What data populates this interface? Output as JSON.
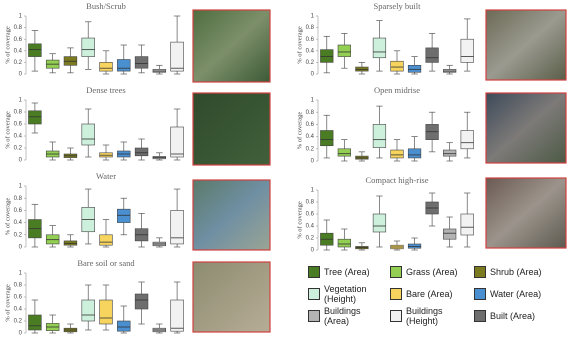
{
  "series": [
    {
      "name": "Tree (Area)",
      "color": "#4a7d23"
    },
    {
      "name": "Grass (Area)",
      "color": "#92cf52"
    },
    {
      "name": "Shrub (Area)",
      "color": "#7b7a1e"
    },
    {
      "name": "Vegetation (Height)",
      "color": "#cdf0dc"
    },
    {
      "name": "Bare (Area)",
      "color": "#f7d45e"
    },
    {
      "name": "Water (Area)",
      "color": "#4a8fd0"
    },
    {
      "name": "Built (Area)",
      "color": "#6e6e6e"
    },
    {
      "name": "Buildings (Area)",
      "color": "#b3b3b3"
    },
    {
      "name": "Buildings (Height)",
      "color": "#f2f2f2"
    }
  ],
  "chart_data": [
    {
      "type": "box",
      "title": "Bush/Scrub",
      "ylabel": "% of coverage",
      "ylim": [
        0,
        1
      ],
      "yticks": [
        0,
        0.2,
        0.4,
        0.6,
        0.8,
        1
      ],
      "boxes": [
        {
          "min": 0.05,
          "q1": 0.3,
          "median": 0.42,
          "q3": 0.52,
          "max": 0.75
        },
        {
          "min": 0.02,
          "q1": 0.1,
          "median": 0.17,
          "q3": 0.24,
          "max": 0.35
        },
        {
          "min": 0.02,
          "q1": 0.15,
          "median": 0.22,
          "q3": 0.3,
          "max": 0.45
        },
        {
          "min": 0.08,
          "q1": 0.3,
          "median": 0.42,
          "q3": 0.62,
          "max": 0.9
        },
        {
          "min": 0,
          "q1": 0.05,
          "median": 0.1,
          "q3": 0.2,
          "max": 0.4
        },
        {
          "min": 0,
          "q1": 0.05,
          "median": 0.1,
          "q3": 0.25,
          "max": 0.5
        },
        {
          "min": 0.02,
          "q1": 0.1,
          "median": 0.18,
          "q3": 0.3,
          "max": 0.5
        },
        {
          "min": 0,
          "q1": 0.03,
          "median": 0.05,
          "q3": 0.08,
          "max": 0.15
        },
        {
          "min": 0,
          "q1": 0.05,
          "median": 0.1,
          "q3": 0.55,
          "max": 1
        }
      ]
    },
    {
      "type": "box",
      "title": "Dense trees",
      "ylabel": "% of coverage",
      "ylim": [
        0,
        1
      ],
      "yticks": [
        0,
        0.2,
        0.4,
        0.6,
        0.8,
        1
      ],
      "boxes": [
        {
          "min": 0.45,
          "q1": 0.6,
          "median": 0.72,
          "q3": 0.82,
          "max": 0.95
        },
        {
          "min": 0,
          "q1": 0.05,
          "median": 0.1,
          "q3": 0.15,
          "max": 0.3
        },
        {
          "min": 0,
          "q1": 0.04,
          "median": 0.07,
          "q3": 0.1,
          "max": 0.2
        },
        {
          "min": 0.05,
          "q1": 0.25,
          "median": 0.35,
          "q3": 0.6,
          "max": 0.85
        },
        {
          "min": 0,
          "q1": 0.05,
          "median": 0.08,
          "q3": 0.12,
          "max": 0.25
        },
        {
          "min": 0,
          "q1": 0.05,
          "median": 0.1,
          "q3": 0.15,
          "max": 0.3
        },
        {
          "min": 0,
          "q1": 0.07,
          "median": 0.12,
          "q3": 0.2,
          "max": 0.35
        },
        {
          "min": 0,
          "q1": 0.02,
          "median": 0.04,
          "q3": 0.06,
          "max": 0.12
        },
        {
          "min": 0,
          "q1": 0.05,
          "median": 0.1,
          "q3": 0.55,
          "max": 0.85
        }
      ]
    },
    {
      "type": "box",
      "title": "Water",
      "ylabel": "% of coverage",
      "ylim": [
        0,
        1
      ],
      "yticks": [
        0,
        0.2,
        0.4,
        0.6,
        0.8,
        1
      ],
      "boxes": [
        {
          "min": 0,
          "q1": 0.15,
          "median": 0.3,
          "q3": 0.45,
          "max": 0.7
        },
        {
          "min": 0,
          "q1": 0.05,
          "median": 0.12,
          "q3": 0.2,
          "max": 0.35
        },
        {
          "min": 0,
          "q1": 0.03,
          "median": 0.06,
          "q3": 0.1,
          "max": 0.2
        },
        {
          "min": 0.05,
          "q1": 0.25,
          "median": 0.45,
          "q3": 0.65,
          "max": 0.95
        },
        {
          "min": 0,
          "q1": 0.03,
          "median": 0.08,
          "q3": 0.2,
          "max": 0.45
        },
        {
          "min": 0.2,
          "q1": 0.4,
          "median": 0.52,
          "q3": 0.62,
          "max": 0.8
        },
        {
          "min": 0,
          "q1": 0.1,
          "median": 0.2,
          "q3": 0.3,
          "max": 0.55
        },
        {
          "min": 0,
          "q1": 0.02,
          "median": 0.05,
          "q3": 0.08,
          "max": 0.15
        },
        {
          "min": 0,
          "q1": 0.05,
          "median": 0.15,
          "q3": 0.6,
          "max": 0.95
        }
      ]
    },
    {
      "type": "box",
      "title": "Bare soil or sand",
      "ylabel": "% of coverage",
      "ylim": [
        0,
        1
      ],
      "yticks": [
        0,
        0.2,
        0.4,
        0.6,
        0.8,
        1
      ],
      "boxes": [
        {
          "min": 0,
          "q1": 0.05,
          "median": 0.12,
          "q3": 0.3,
          "max": 0.55
        },
        {
          "min": 0,
          "q1": 0.04,
          "median": 0.1,
          "q3": 0.16,
          "max": 0.3
        },
        {
          "min": 0,
          "q1": 0.02,
          "median": 0.05,
          "q3": 0.08,
          "max": 0.15
        },
        {
          "min": 0.05,
          "q1": 0.2,
          "median": 0.3,
          "q3": 0.55,
          "max": 0.8
        },
        {
          "min": 0.05,
          "q1": 0.15,
          "median": 0.25,
          "q3": 0.55,
          "max": 0.8
        },
        {
          "min": 0,
          "q1": 0.03,
          "median": 0.1,
          "q3": 0.2,
          "max": 0.45
        },
        {
          "min": 0.15,
          "q1": 0.4,
          "median": 0.55,
          "q3": 0.65,
          "max": 0.85
        },
        {
          "min": 0,
          "q1": 0.02,
          "median": 0.05,
          "q3": 0.08,
          "max": 0.15
        },
        {
          "min": 0,
          "q1": 0.03,
          "median": 0.08,
          "q3": 0.55,
          "max": 0.85
        }
      ]
    },
    {
      "type": "box",
      "title": "Sparsely built",
      "ylabel": "% of coverage",
      "ylim": [
        0,
        1
      ],
      "yticks": [
        0,
        0.2,
        0.4,
        0.6,
        0.8,
        1
      ],
      "boxes": [
        {
          "min": 0.02,
          "q1": 0.2,
          "median": 0.3,
          "q3": 0.42,
          "max": 0.65
        },
        {
          "min": 0.1,
          "q1": 0.3,
          "median": 0.38,
          "q3": 0.5,
          "max": 0.7
        },
        {
          "min": 0,
          "q1": 0.05,
          "median": 0.08,
          "q3": 0.12,
          "max": 0.2
        },
        {
          "min": 0.05,
          "q1": 0.28,
          "median": 0.38,
          "q3": 0.62,
          "max": 0.92
        },
        {
          "min": 0,
          "q1": 0.05,
          "median": 0.12,
          "q3": 0.22,
          "max": 0.4
        },
        {
          "min": 0,
          "q1": 0.03,
          "median": 0.08,
          "q3": 0.15,
          "max": 0.3
        },
        {
          "min": 0.05,
          "q1": 0.2,
          "median": 0.28,
          "q3": 0.45,
          "max": 0.7
        },
        {
          "min": 0,
          "q1": 0.03,
          "median": 0.05,
          "q3": 0.08,
          "max": 0.15
        },
        {
          "min": 0.05,
          "q1": 0.2,
          "median": 0.3,
          "q3": 0.6,
          "max": 0.95
        }
      ]
    },
    {
      "type": "box",
      "title": "Open midrise",
      "ylabel": "% of coverage",
      "ylim": [
        0,
        1
      ],
      "yticks": [
        0,
        0.2,
        0.4,
        0.6,
        0.8,
        1
      ],
      "boxes": [
        {
          "min": 0.05,
          "q1": 0.25,
          "median": 0.35,
          "q3": 0.5,
          "max": 0.75
        },
        {
          "min": 0,
          "q1": 0.08,
          "median": 0.12,
          "q3": 0.2,
          "max": 0.35
        },
        {
          "min": 0,
          "q1": 0.03,
          "median": 0.05,
          "q3": 0.08,
          "max": 0.15
        },
        {
          "min": 0.05,
          "q1": 0.22,
          "median": 0.35,
          "q3": 0.6,
          "max": 0.9
        },
        {
          "min": 0,
          "q1": 0.05,
          "median": 0.1,
          "q3": 0.18,
          "max": 0.35
        },
        {
          "min": 0,
          "q1": 0.05,
          "median": 0.1,
          "q3": 0.2,
          "max": 0.4
        },
        {
          "min": 0.15,
          "q1": 0.35,
          "median": 0.48,
          "q3": 0.6,
          "max": 0.8
        },
        {
          "min": 0,
          "q1": 0.08,
          "median": 0.12,
          "q3": 0.18,
          "max": 0.3
        },
        {
          "min": 0.05,
          "q1": 0.2,
          "median": 0.3,
          "q3": 0.5,
          "max": 0.8
        }
      ]
    },
    {
      "type": "box",
      "title": "Compact high-rise",
      "ylabel": "% of coverage",
      "ylim": [
        0,
        1
      ],
      "yticks": [
        0,
        0.2,
        0.4,
        0.6,
        0.8,
        1
      ],
      "boxes": [
        {
          "min": 0,
          "q1": 0.08,
          "median": 0.18,
          "q3": 0.28,
          "max": 0.5
        },
        {
          "min": 0,
          "q1": 0.05,
          "median": 0.1,
          "q3": 0.18,
          "max": 0.35
        },
        {
          "min": 0,
          "q1": 0.02,
          "median": 0.04,
          "q3": 0.06,
          "max": 0.12
        },
        {
          "min": 0.05,
          "q1": 0.3,
          "median": 0.4,
          "q3": 0.6,
          "max": 0.9
        },
        {
          "min": 0,
          "q1": 0.02,
          "median": 0.05,
          "q3": 0.08,
          "max": 0.15
        },
        {
          "min": 0,
          "q1": 0.03,
          "median": 0.06,
          "q3": 0.1,
          "max": 0.2
        },
        {
          "min": 0.4,
          "q1": 0.6,
          "median": 0.7,
          "q3": 0.8,
          "max": 0.95
        },
        {
          "min": 0.05,
          "q1": 0.18,
          "median": 0.28,
          "q3": 0.35,
          "max": 0.55
        },
        {
          "min": 0.05,
          "q1": 0.25,
          "median": 0.38,
          "q3": 0.6,
          "max": 0.95
        }
      ]
    }
  ]
}
